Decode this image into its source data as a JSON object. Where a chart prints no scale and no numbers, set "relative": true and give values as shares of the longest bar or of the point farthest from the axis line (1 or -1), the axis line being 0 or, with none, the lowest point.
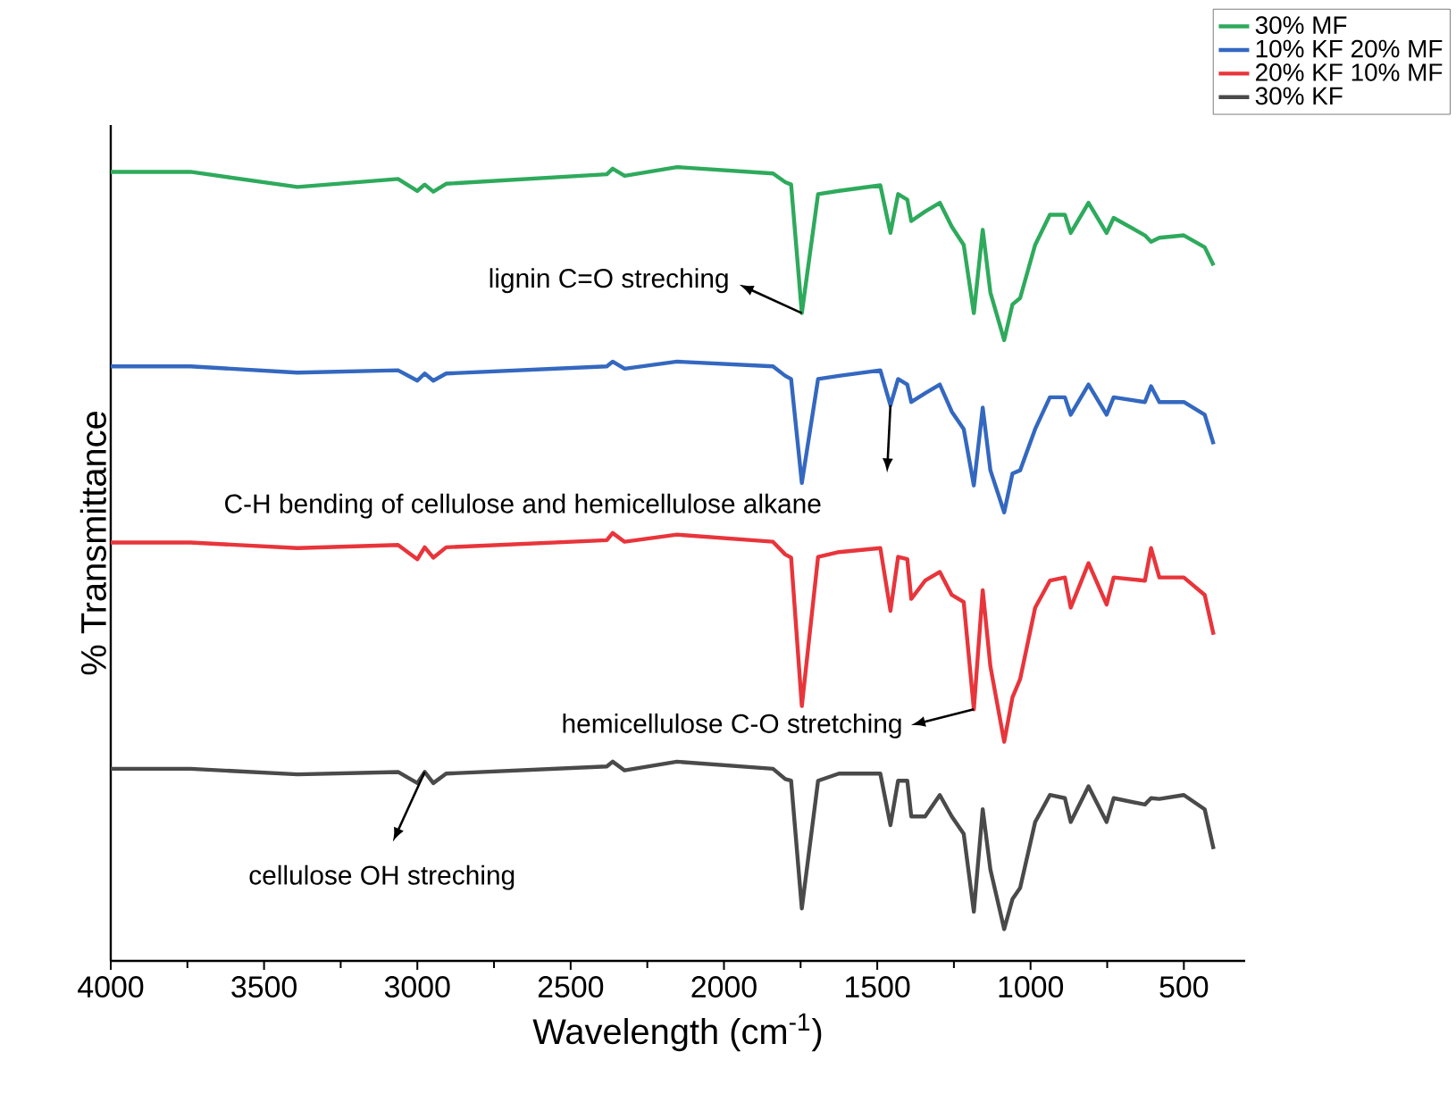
{
  "chart_data": {
    "type": "line",
    "xlabel": "Wavelength (cm$^{-1}$)",
    "ylabel": "% Transmittance",
    "relative": true,
    "xlim": [
      4000,
      300
    ],
    "xticks": [
      4000,
      3500,
      3000,
      2500,
      2000,
      1500,
      1000,
      500
    ],
    "legend": "top right",
    "x": [
      4000,
      3740,
      3391,
      3063,
      3000,
      2976,
      2948,
      2906,
      2382,
      2363,
      2324,
      2153,
      1840,
      1800,
      1781,
      1746,
      1693,
      1625,
      1490,
      1457,
      1432,
      1402,
      1389,
      1344,
      1296,
      1257,
      1218,
      1185,
      1156,
      1131,
      1086,
      1059,
      1034,
      985,
      937,
      888,
      869,
      811,
      752,
      729,
      627,
      607,
      580,
      500,
      432,
      403
    ],
    "series": [
      {
        "name": "30% MF",
        "color": "#2eaa5c",
        "values": [
          0.994,
          0.994,
          0.975,
          0.985,
          0.97,
          0.978,
          0.969,
          0.979,
          0.991,
          0.998,
          0.989,
          1.0,
          0.992,
          0.981,
          0.978,
          0.816,
          0.966,
          0.97,
          0.977,
          0.917,
          0.966,
          0.959,
          0.932,
          0.944,
          0.955,
          0.925,
          0.902,
          0.816,
          0.921,
          0.842,
          0.782,
          0.827,
          0.835,
          0.902,
          0.94,
          0.94,
          0.917,
          0.955,
          0.917,
          0.936,
          0.914,
          0.906,
          0.911,
          0.914,
          0.899,
          0.876
        ]
      },
      {
        "name": "10% KF 20% MF",
        "color": "#3468c0",
        "values": [
          0.749,
          0.749,
          0.741,
          0.744,
          0.731,
          0.74,
          0.731,
          0.74,
          0.749,
          0.755,
          0.746,
          0.755,
          0.749,
          0.737,
          0.733,
          0.602,
          0.733,
          0.737,
          0.744,
          0.7,
          0.733,
          0.726,
          0.704,
          0.715,
          0.726,
          0.692,
          0.67,
          0.599,
          0.697,
          0.618,
          0.565,
          0.614,
          0.618,
          0.67,
          0.71,
          0.71,
          0.688,
          0.726,
          0.688,
          0.71,
          0.704,
          0.724,
          0.704,
          0.704,
          0.688,
          0.651
        ]
      },
      {
        "name": "20% KF 10% MF",
        "color": "#e8353b",
        "values": [
          0.527,
          0.527,
          0.52,
          0.524,
          0.506,
          0.521,
          0.508,
          0.521,
          0.53,
          0.539,
          0.528,
          0.537,
          0.528,
          0.512,
          0.508,
          0.321,
          0.509,
          0.515,
          0.52,
          0.441,
          0.509,
          0.506,
          0.456,
          0.479,
          0.49,
          0.461,
          0.452,
          0.317,
          0.467,
          0.371,
          0.276,
          0.332,
          0.355,
          0.445,
          0.479,
          0.483,
          0.445,
          0.501,
          0.449,
          0.483,
          0.479,
          0.52,
          0.483,
          0.483,
          0.461,
          0.411
        ]
      },
      {
        "name": "30% KF",
        "color": "#4a4a4a",
        "values": [
          0.242,
          0.242,
          0.235,
          0.238,
          0.224,
          0.238,
          0.224,
          0.236,
          0.245,
          0.251,
          0.24,
          0.251,
          0.242,
          0.229,
          0.227,
          0.066,
          0.227,
          0.236,
          0.236,
          0.171,
          0.227,
          0.227,
          0.182,
          0.182,
          0.209,
          0.182,
          0.16,
          0.062,
          0.191,
          0.115,
          0.04,
          0.078,
          0.092,
          0.175,
          0.209,
          0.205,
          0.175,
          0.22,
          0.175,
          0.205,
          0.197,
          0.205,
          0.204,
          0.209,
          0.191,
          0.141
        ]
      }
    ],
    "annotations": [
      {
        "text": "lignin C=O streching",
        "x": 1746,
        "y": 0.816
      },
      "C-H bending of cellulose and hemicellulose alkane",
      {
        "text": "hemicellulose C-O stretching",
        "x": 1185,
        "y": 0.317
      },
      "cellulose OH streching"
    ]
  }
}
